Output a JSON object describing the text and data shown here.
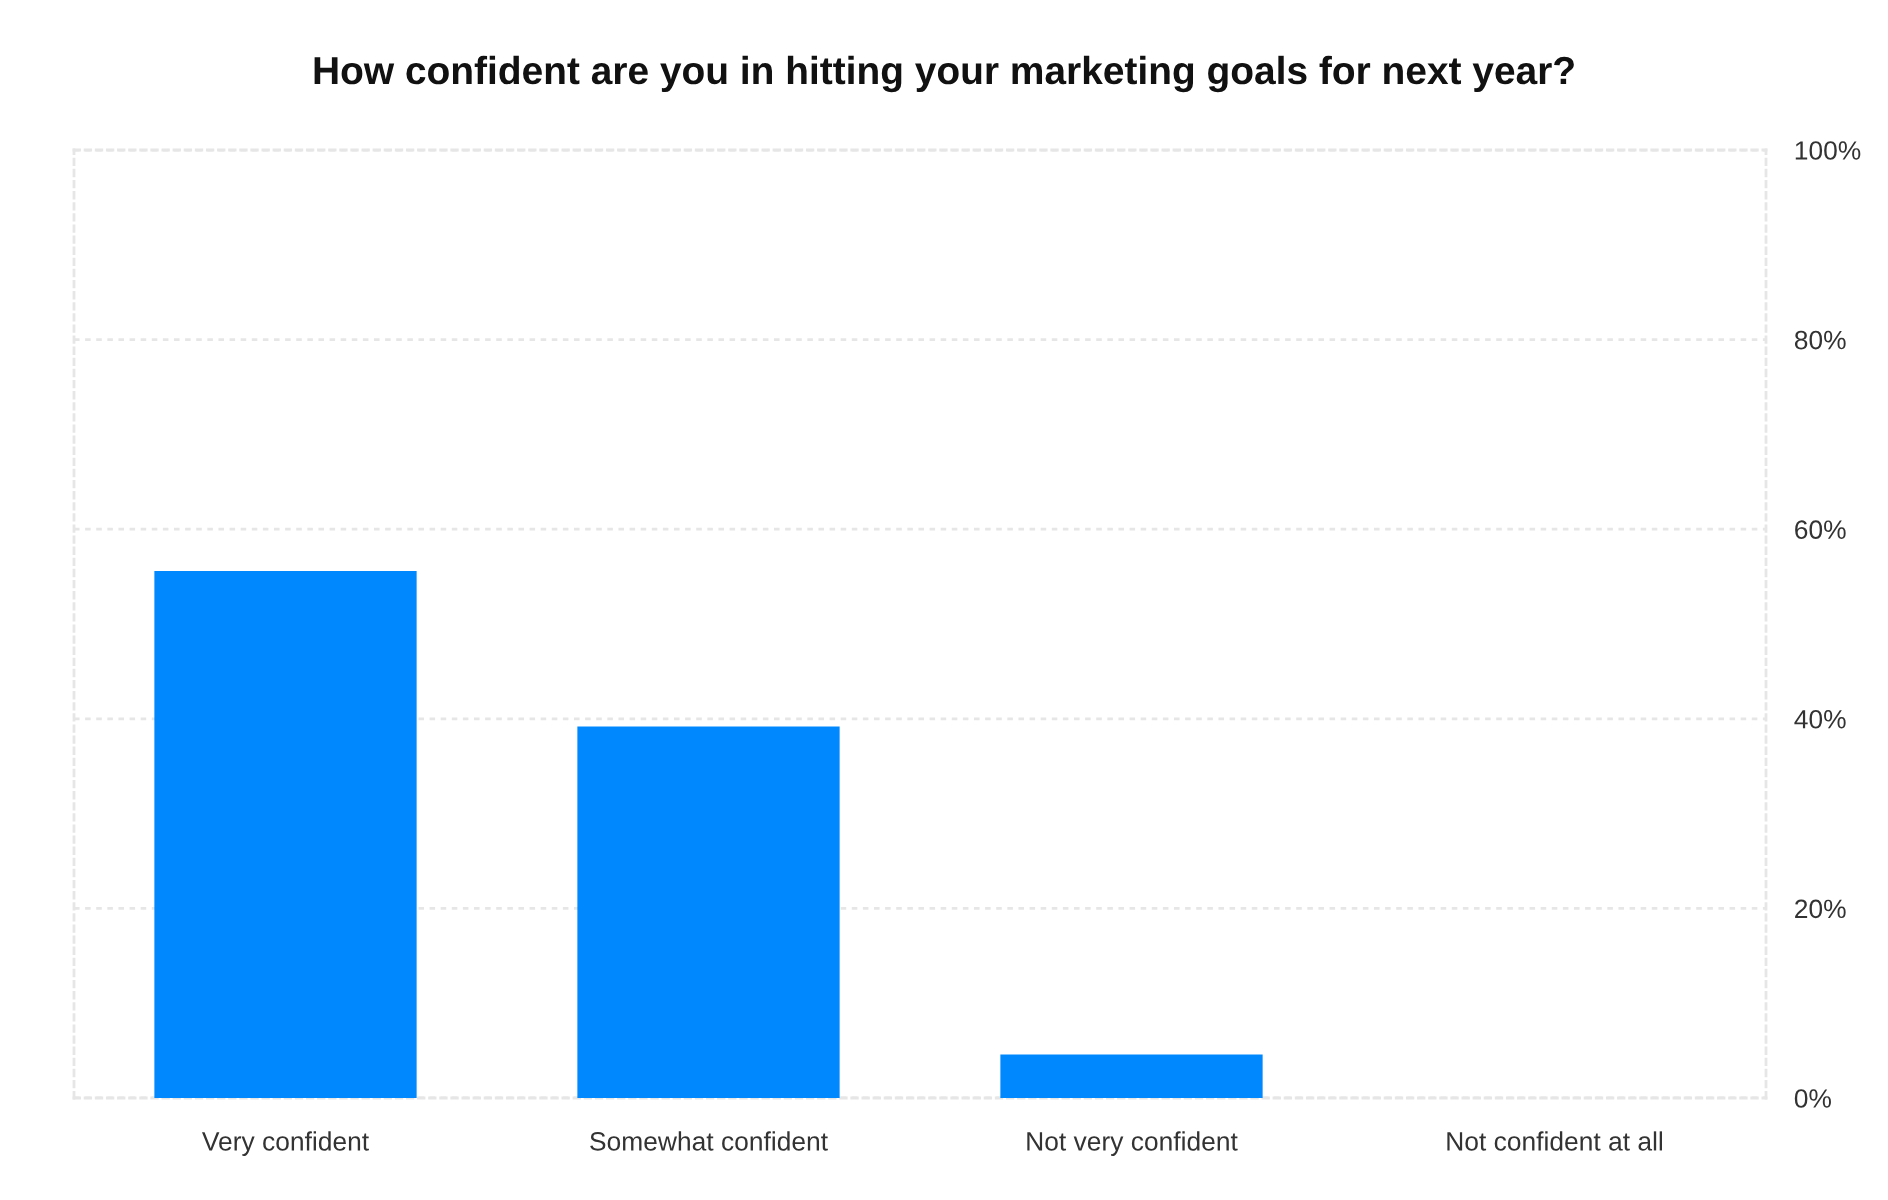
{
  "chart_data": {
    "type": "bar",
    "title": "How confident are you in hitting your marketing goals for next year?",
    "categories": [
      "Very confident",
      "Somewhat confident",
      "Not very confident",
      "Not confident at all"
    ],
    "values": [
      55.6,
      39.2,
      4.6,
      0
    ],
    "color": "#0088ff",
    "ylim": [
      0,
      100
    ],
    "yticks": [
      {
        "value": 0,
        "label": "0%"
      },
      {
        "value": 20,
        "label": "20%"
      },
      {
        "value": 40,
        "label": "40%"
      },
      {
        "value": 60,
        "label": "60%"
      },
      {
        "value": 80,
        "label": "80%"
      },
      {
        "value": 100,
        "label": "100%"
      }
    ],
    "grid": "y"
  }
}
